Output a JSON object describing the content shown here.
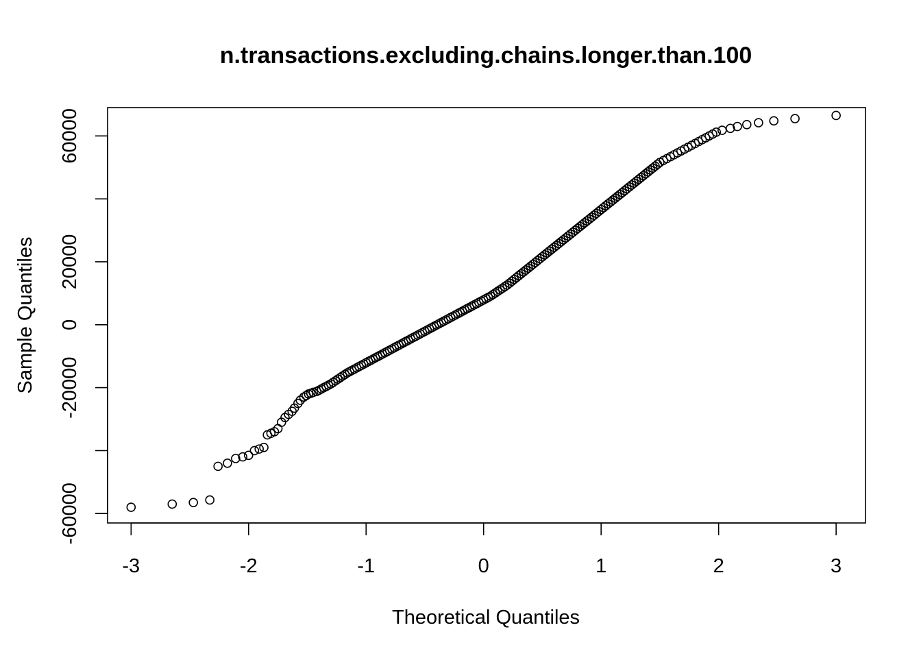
{
  "chart_data": {
    "type": "scatter",
    "title": "n.transactions.excluding.chains.longer.than.100",
    "xlabel": "Theoretical Quantiles",
    "ylabel": "Sample Quantiles",
    "xlim": [
      -3.2,
      3.25
    ],
    "ylim": [
      -63000,
      69000
    ],
    "x_ticks": [
      -3,
      -2,
      -1,
      0,
      1,
      2,
      3
    ],
    "x_tick_labels": [
      "-3",
      "-2",
      "-1",
      "0",
      "1",
      "2",
      "3"
    ],
    "y_ticks": [
      -60000,
      -40000,
      -20000,
      0,
      20000,
      40000,
      60000
    ],
    "y_tick_labels": [
      "-60000",
      "",
      "-20000",
      "0",
      "20000",
      "",
      "60000"
    ],
    "grid": false,
    "marker": "open-circle",
    "series": [
      {
        "x": [
          -3.0,
          -2.65,
          -2.47,
          -2.33,
          -2.26,
          -2.18,
          -2.11,
          -2.05,
          -2.0,
          -1.95,
          -1.91,
          -1.87,
          -1.84,
          -1.81,
          -1.78,
          -1.75,
          -1.72,
          -1.69,
          -1.66,
          -1.63,
          -1.61,
          -1.58,
          -1.56,
          -1.53,
          -1.51,
          -1.49,
          -1.47,
          -1.45,
          -1.42,
          -1.4,
          -1.38,
          -1.36,
          -1.34,
          -1.32,
          -1.3,
          -1.28,
          -1.26,
          -1.24,
          -1.22,
          -1.2,
          -1.18,
          -1.16,
          -1.14,
          -1.12,
          -1.1,
          -1.08,
          -1.06,
          -1.04,
          -1.02,
          -1.0,
          -0.98,
          -0.96,
          -0.94,
          -0.92,
          -0.9,
          -0.88,
          -0.86,
          -0.84,
          -0.82,
          -0.8,
          -0.78,
          -0.76,
          -0.74,
          -0.72,
          -0.7,
          -0.68,
          -0.66,
          -0.64,
          -0.62,
          -0.6,
          -0.58,
          -0.56,
          -0.54,
          -0.52,
          -0.5,
          -0.48,
          -0.46,
          -0.44,
          -0.42,
          -0.4,
          -0.38,
          -0.36,
          -0.34,
          -0.32,
          -0.3,
          -0.28,
          -0.26,
          -0.24,
          -0.22,
          -0.2,
          -0.18,
          -0.16,
          -0.14,
          -0.12,
          -0.1,
          -0.08,
          -0.06,
          -0.04,
          -0.02,
          0.0,
          0.02,
          0.04,
          0.06,
          0.08,
          0.1,
          0.12,
          0.14,
          0.16,
          0.18,
          0.2,
          0.22,
          0.24,
          0.26,
          0.28,
          0.3,
          0.32,
          0.34,
          0.36,
          0.38,
          0.4,
          0.42,
          0.44,
          0.46,
          0.48,
          0.5,
          0.52,
          0.54,
          0.56,
          0.58,
          0.6,
          0.62,
          0.64,
          0.66,
          0.68,
          0.7,
          0.72,
          0.74,
          0.76,
          0.78,
          0.8,
          0.82,
          0.84,
          0.86,
          0.88,
          0.9,
          0.92,
          0.94,
          0.96,
          0.98,
          1.0,
          1.02,
          1.04,
          1.06,
          1.08,
          1.1,
          1.12,
          1.14,
          1.16,
          1.18,
          1.2,
          1.22,
          1.24,
          1.26,
          1.28,
          1.3,
          1.32,
          1.34,
          1.36,
          1.38,
          1.4,
          1.42,
          1.44,
          1.46,
          1.48,
          1.5,
          1.53,
          1.56,
          1.59,
          1.62,
          1.65,
          1.68,
          1.71,
          1.74,
          1.77,
          1.8,
          1.83,
          1.86,
          1.89,
          1.92,
          1.95,
          1.98,
          2.03,
          2.1,
          2.16,
          2.24,
          2.34,
          2.47,
          2.65,
          3.0
        ],
        "y": [
          -58000,
          -57000,
          -56500,
          -55700,
          -45000,
          -44000,
          -42500,
          -42000,
          -41500,
          -40000,
          -39500,
          -39000,
          -35000,
          -34500,
          -34000,
          -33000,
          -31000,
          -29500,
          -28500,
          -27500,
          -26500,
          -25000,
          -24000,
          -23000,
          -22500,
          -22000,
          -21800,
          -21500,
          -21200,
          -20800,
          -20400,
          -20000,
          -19600,
          -19200,
          -18800,
          -18300,
          -17800,
          -17300,
          -16800,
          -16300,
          -15800,
          -15300,
          -14900,
          -14500,
          -14100,
          -13700,
          -13300,
          -12900,
          -12500,
          -12100,
          -11700,
          -11300,
          -10900,
          -10500,
          -10100,
          -9700,
          -9300,
          -8900,
          -8500,
          -8100,
          -7700,
          -7300,
          -6900,
          -6500,
          -6100,
          -5700,
          -5300,
          -4900,
          -4500,
          -4100,
          -3700,
          -3300,
          -2900,
          -2500,
          -2100,
          -1700,
          -1300,
          -900,
          -500,
          -100,
          300,
          700,
          1100,
          1500,
          1900,
          2300,
          2700,
          3100,
          3500,
          3900,
          4300,
          4700,
          5100,
          5500,
          5900,
          6300,
          6700,
          7100,
          7500,
          7900,
          8300,
          8700,
          9100,
          9600,
          10100,
          10600,
          11100,
          11600,
          12100,
          12600,
          13200,
          13800,
          14400,
          15000,
          15600,
          16200,
          16800,
          17400,
          18000,
          18600,
          19200,
          19800,
          20400,
          21000,
          21600,
          22200,
          22800,
          23400,
          24000,
          24600,
          25200,
          25800,
          26400,
          27000,
          27600,
          28200,
          28800,
          29400,
          30000,
          30600,
          31200,
          31800,
          32400,
          33000,
          33600,
          34200,
          34800,
          35400,
          36000,
          36600,
          37200,
          37800,
          38400,
          39000,
          39600,
          40200,
          40800,
          41400,
          42000,
          42600,
          43200,
          43800,
          44400,
          45000,
          45600,
          46200,
          46800,
          47400,
          48000,
          48600,
          49200,
          49800,
          50400,
          51000,
          51600,
          52200,
          52800,
          53400,
          54000,
          54600,
          55200,
          55800,
          56400,
          57000,
          57600,
          58200,
          58800,
          59400,
          60000,
          60600,
          61200,
          61800,
          62400,
          63000,
          63600,
          64200,
          64800,
          65500,
          66500
        ]
      }
    ]
  }
}
